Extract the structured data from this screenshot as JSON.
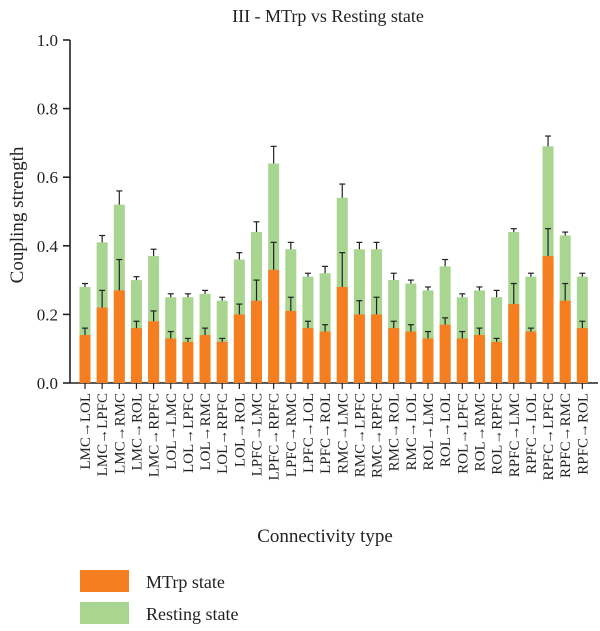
{
  "chart_data": {
    "type": "bar",
    "title": "III - MTrp vs Resting state",
    "xlabel": "Connectivity type",
    "ylabel": "Coupling strength",
    "ylim": [
      0,
      1.0
    ],
    "yticks": [
      "0.0",
      "0.2",
      "0.4",
      "0.6",
      "0.8",
      "1.0"
    ],
    "stacked": false,
    "categories": [
      "LMC→LOL",
      "LMC→LPFC",
      "LMC→RMC",
      "LMC→ROL",
      "LMC→RPFC",
      "LOL→LMC",
      "LOL→LPFC",
      "LOL→RMC",
      "LOL→RPFC",
      "LOL→ROL",
      "LPFC→LMC",
      "LPFC→RPFC",
      "LPFC→RMC",
      "LPFC→LOL",
      "LPFC→ROL",
      "RMC→LMC",
      "RMC→LPFC",
      "RMC→RPFC",
      "RMC→ROL",
      "RMC→LOL",
      "ROL→LMC",
      "ROL→LOL",
      "ROL→LPFC",
      "ROL→RMC",
      "ROL→RPFC",
      "RPFC→LMC",
      "RPFC→LOL",
      "RPFC→LPFC",
      "RPFC→RMC",
      "RPFC→ROL"
    ],
    "series": [
      {
        "name": "Resting state",
        "color": "#a8d590",
        "values": [
          0.28,
          0.41,
          0.52,
          0.3,
          0.37,
          0.25,
          0.25,
          0.26,
          0.24,
          0.36,
          0.44,
          0.64,
          0.39,
          0.31,
          0.32,
          0.54,
          0.39,
          0.39,
          0.3,
          0.29,
          0.27,
          0.34,
          0.25,
          0.27,
          0.25,
          0.44,
          0.31,
          0.69,
          0.43,
          0.31
        ],
        "errors": [
          0.01,
          0.02,
          0.04,
          0.01,
          0.02,
          0.01,
          0.01,
          0.01,
          0.01,
          0.02,
          0.03,
          0.05,
          0.02,
          0.01,
          0.02,
          0.04,
          0.02,
          0.02,
          0.02,
          0.01,
          0.01,
          0.02,
          0.01,
          0.01,
          0.02,
          0.01,
          0.01,
          0.03,
          0.01,
          0.01
        ]
      },
      {
        "name": "MTrp state",
        "color": "#f57f20",
        "values": [
          0.14,
          0.22,
          0.27,
          0.16,
          0.18,
          0.13,
          0.12,
          0.14,
          0.12,
          0.2,
          0.24,
          0.33,
          0.21,
          0.16,
          0.15,
          0.28,
          0.2,
          0.2,
          0.16,
          0.15,
          0.13,
          0.17,
          0.13,
          0.14,
          0.12,
          0.23,
          0.15,
          0.37,
          0.24,
          0.16
        ],
        "errors": [
          0.02,
          0.05,
          0.09,
          0.02,
          0.03,
          0.02,
          0.01,
          0.02,
          0.01,
          0.03,
          0.06,
          0.08,
          0.04,
          0.02,
          0.02,
          0.1,
          0.04,
          0.05,
          0.02,
          0.02,
          0.02,
          0.02,
          0.02,
          0.02,
          0.01,
          0.06,
          0.01,
          0.08,
          0.05,
          0.02
        ]
      }
    ],
    "legend": {
      "position": "bottom-left",
      "items": [
        {
          "label": "MTrp state",
          "color": "#f57f20"
        },
        {
          "label": "Resting state",
          "color": "#a8d590"
        }
      ]
    },
    "grid": false
  }
}
